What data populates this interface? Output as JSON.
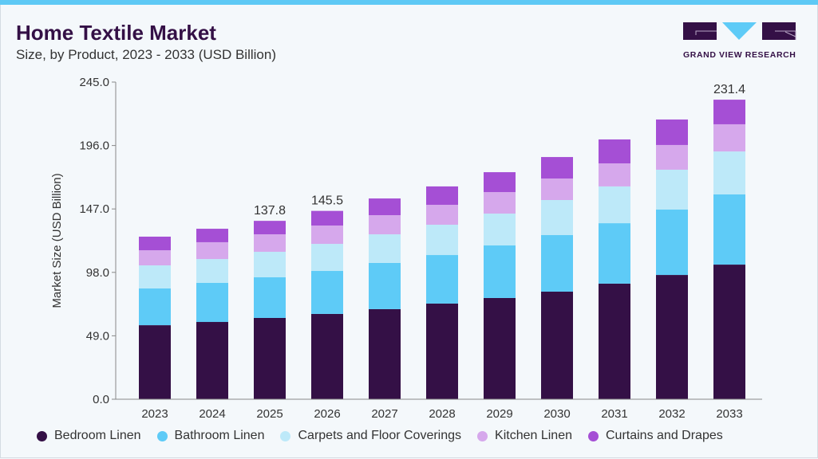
{
  "header": {
    "title": "Home Textile Market",
    "subtitle": "Size, by Product, 2023 - 2033 (USD Billion)",
    "logo_text": "GRAND VIEW RESEARCH"
  },
  "chart_data": {
    "type": "bar",
    "stacked": true,
    "title": "Home Textile Market",
    "subtitle": "Size, by Product, 2023 - 2033 (USD Billion)",
    "xlabel": "",
    "ylabel": "Market Size (USD Billion)",
    "ylim": [
      0,
      245
    ],
    "yticks": [
      "0.0",
      "49.0",
      "98.0",
      "147.0",
      "196.0",
      "245.0"
    ],
    "grid": false,
    "legend_position": "bottom",
    "categories": [
      "2023",
      "2024",
      "2025",
      "2026",
      "2027",
      "2028",
      "2029",
      "2030",
      "2031",
      "2032",
      "2033"
    ],
    "series": [
      {
        "name": "Bedroom Linen",
        "color": "#341046",
        "values": [
          57.2,
          59.7,
          62.8,
          65.9,
          69.6,
          73.9,
          78.2,
          83.1,
          89.3,
          96.0,
          104.0
        ]
      },
      {
        "name": "Bathroom Linen",
        "color": "#5ecbf7",
        "values": [
          28.4,
          30.2,
          31.4,
          33.2,
          35.7,
          37.5,
          40.6,
          43.7,
          46.7,
          50.5,
          54.2
        ]
      },
      {
        "name": "Carpets and Floor Coverings",
        "color": "#bde9f9",
        "values": [
          17.8,
          18.4,
          19.7,
          20.9,
          22.1,
          23.4,
          24.6,
          27.1,
          28.4,
          30.8,
          33.2
        ]
      },
      {
        "name": "Kitchen Linen",
        "color": "#d6a8ec",
        "values": [
          11.7,
          13.0,
          13.5,
          14.2,
          14.8,
          15.4,
          16.6,
          16.6,
          17.8,
          19.1,
          21.0
        ]
      },
      {
        "name": "Curtains and Drapes",
        "color": "#a54fd5",
        "values": [
          10.5,
          10.4,
          10.4,
          11.3,
          12.9,
          14.2,
          15.4,
          16.6,
          18.5,
          19.7,
          19.0
        ]
      }
    ],
    "data_labels": [
      {
        "category": "2025",
        "text": "137.8"
      },
      {
        "category": "2026",
        "text": "145.5"
      },
      {
        "category": "2033",
        "text": "231.4"
      }
    ]
  }
}
